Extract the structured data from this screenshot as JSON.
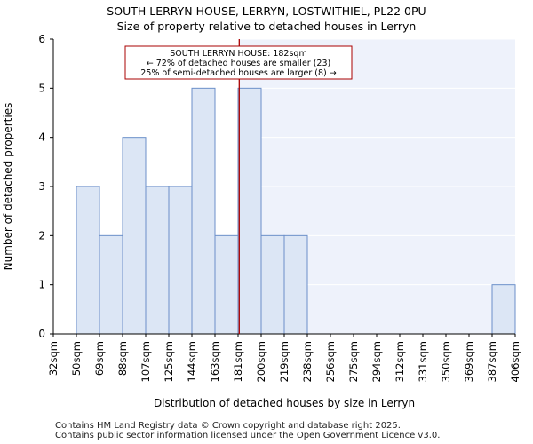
{
  "chart_data": {
    "type": "bar",
    "title": "SOUTH LERRYN HOUSE, LERRYN, LOSTWITHIEL, PL22 0PU",
    "subtitle": "Size of property relative to detached houses in Lerryn",
    "xlabel": "Distribution of detached houses by size in Lerryn",
    "ylabel": "Number of detached properties",
    "ylim": [
      0,
      6
    ],
    "yticks": [
      "0",
      "1",
      "2",
      "3",
      "4",
      "5",
      "6"
    ],
    "bin_edges": [
      "32sqm",
      "50sqm",
      "69sqm",
      "88sqm",
      "107sqm",
      "125sqm",
      "144sqm",
      "163sqm",
      "181sqm",
      "200sqm",
      "219sqm",
      "238sqm",
      "256sqm",
      "275sqm",
      "294sqm",
      "312sqm",
      "331sqm",
      "350sqm",
      "369sqm",
      "387sqm",
      "406sqm"
    ],
    "values": [
      0,
      3,
      2,
      4,
      3,
      3,
      5,
      2,
      5,
      2,
      2,
      0,
      0,
      0,
      0,
      0,
      0,
      0,
      0,
      1
    ],
    "marker": {
      "value_sqm": 182,
      "bin_position": 8.05,
      "label_lines": [
        "SOUTH LERRYN HOUSE: 182sqm",
        "← 72% of detached houses are smaller (23)",
        "25% of semi-detached houses are larger (8) →"
      ]
    },
    "colors": {
      "bar_fill": "#dce6f5",
      "bar_stroke": "#6b8fc9",
      "highlight_bg": "#eef2fb",
      "marker_line": "#aa0000",
      "annotation_border": "#aa0000",
      "axis": "#000000",
      "grid": "#ffffff"
    }
  },
  "footer": {
    "line1": "Contains HM Land Registry data © Crown copyright and database right 2025.",
    "line2": "Contains public sector information licensed under the Open Government Licence v3.0."
  }
}
